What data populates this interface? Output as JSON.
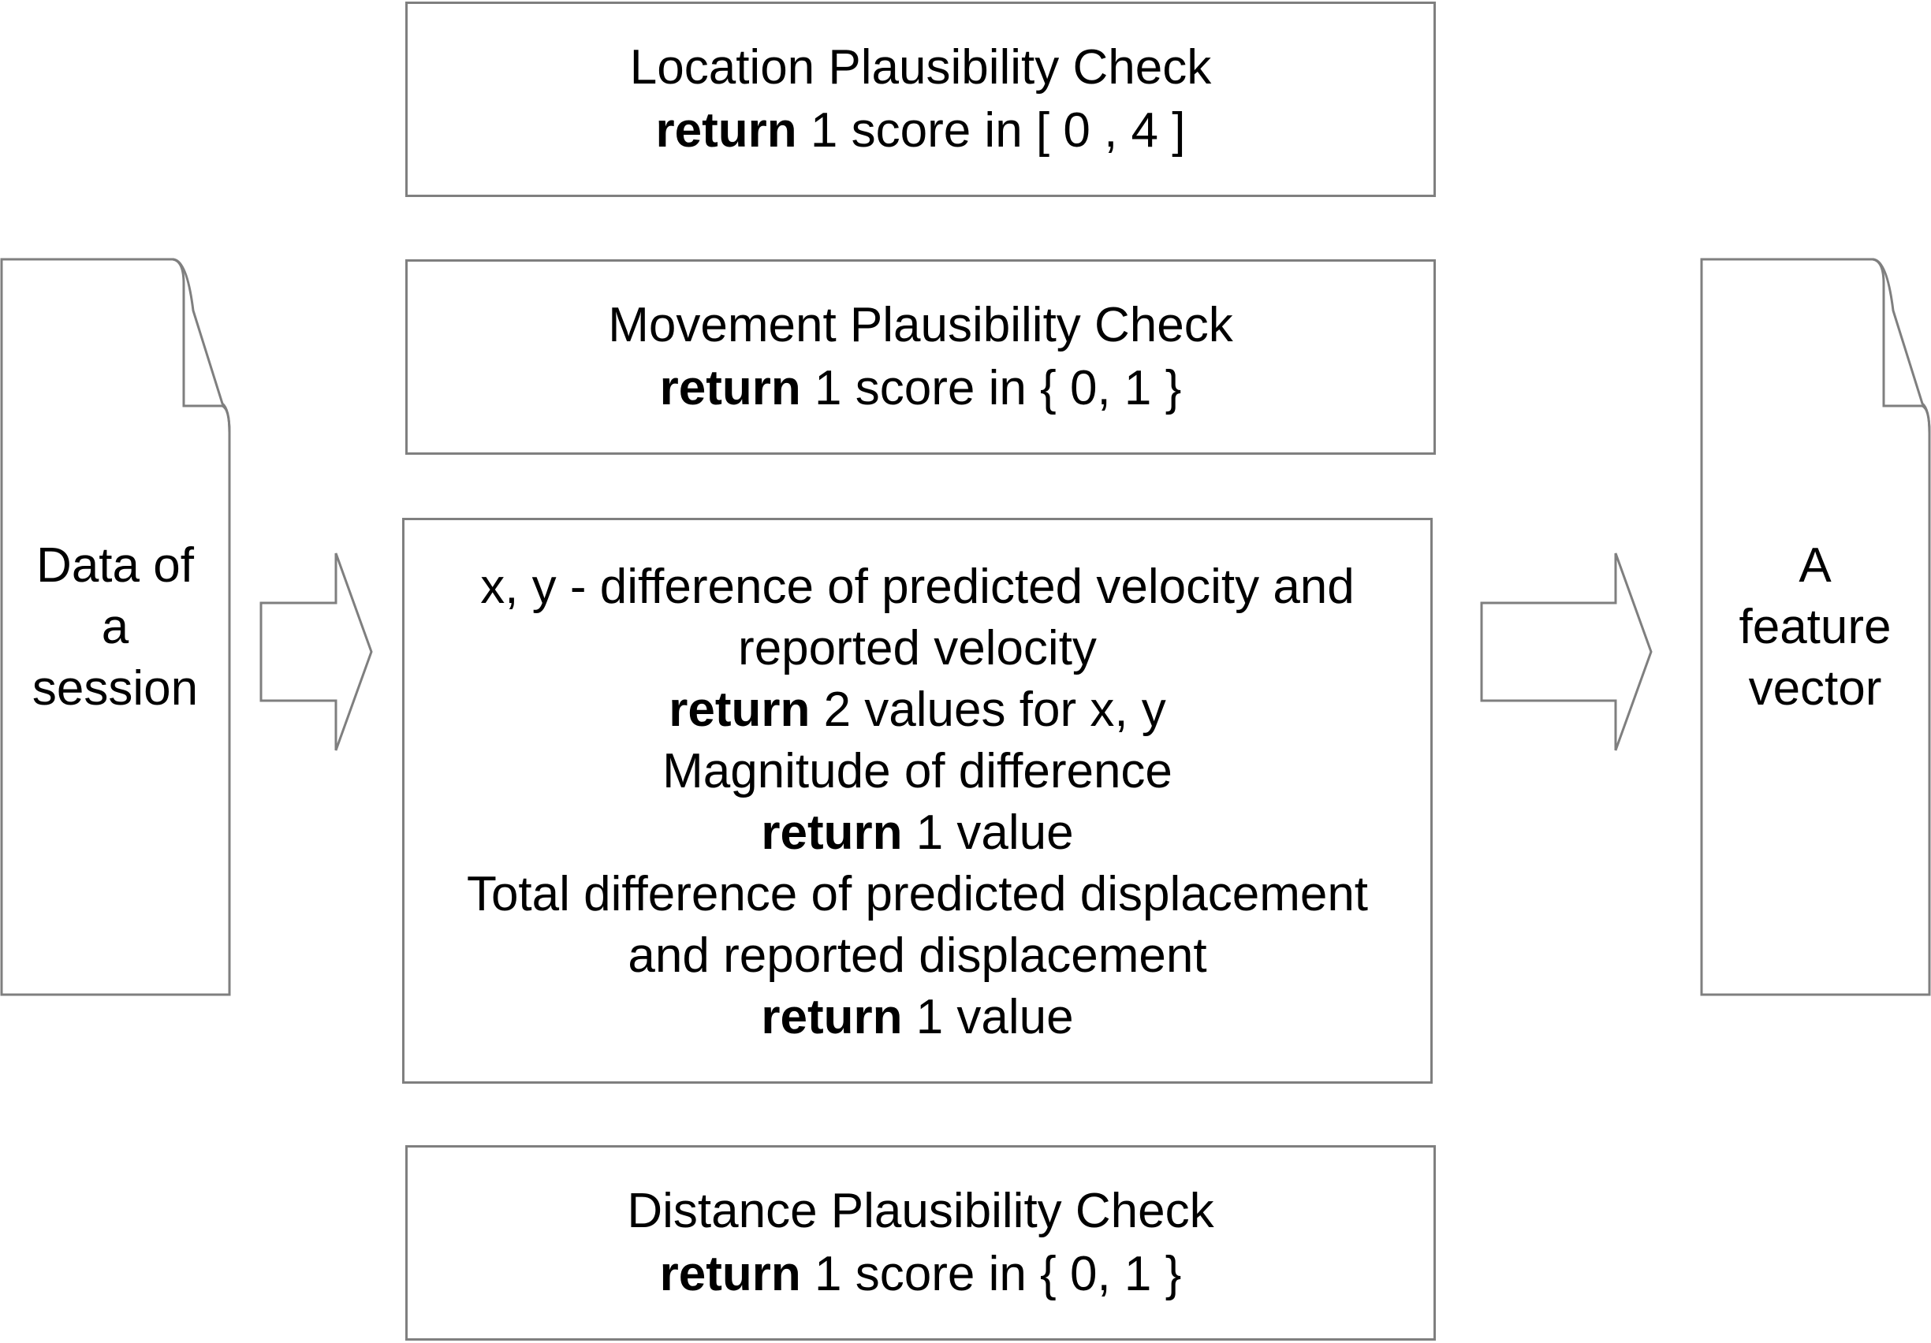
{
  "input_document": {
    "lines": [
      "Data of",
      "a",
      "session"
    ]
  },
  "output_document": {
    "lines": [
      "A",
      "feature",
      "vector"
    ]
  },
  "location_check": {
    "title": "Location Plausibility Check",
    "keyword": "return",
    "result": "1 score in [ 0 , 4 ]"
  },
  "movement_check": {
    "title": "Movement Plausibility Check",
    "keyword": "return",
    "result": "1 score in { 0, 1 }"
  },
  "velocity_box": {
    "line1": "x, y - difference of predicted velocity and",
    "line2": "reported velocity",
    "return1_keyword": "return",
    "return1_result": "2 values for x, y",
    "line3": "Magnitude of difference",
    "return2_keyword": "return",
    "return2_result": "1 value",
    "line4": "Total difference of predicted displacement",
    "line5": "and reported displacement",
    "return3_keyword": "return",
    "return3_result": "1 value"
  },
  "distance_check": {
    "title": "Distance Plausibility Check",
    "keyword": "return",
    "result": "1 score in { 0, 1 }"
  },
  "colors": {
    "stroke": "#7f7f7f",
    "text": "#000000",
    "background": "#ffffff"
  }
}
